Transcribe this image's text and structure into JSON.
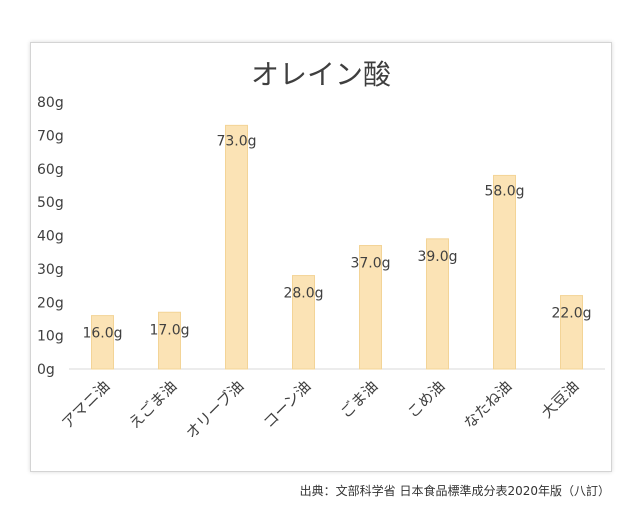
{
  "chart_data": {
    "type": "bar",
    "title": "オレイン酸",
    "categories": [
      "アマニ油",
      "えごま油",
      "オリーブ油",
      "コーン油",
      "ごま油",
      "こめ油",
      "なたね油",
      "大豆油"
    ],
    "values": [
      16.0,
      17.0,
      73.0,
      28.0,
      37.0,
      39.0,
      58.0,
      22.0
    ],
    "data_labels": [
      "16.0g",
      "17.0g",
      "73.0g",
      "28.0g",
      "37.0g",
      "39.0g",
      "58.0g",
      "22.0g"
    ],
    "ylim": [
      0,
      80
    ],
    "yticks": [
      "0g",
      "10g",
      "20g",
      "30g",
      "40g",
      "50g",
      "60g",
      "70g",
      "80g"
    ],
    "grid": false,
    "bar_color": "#fbe3b5",
    "bar_edge_color": "#f3d497"
  },
  "source": "出典：文部科学省 日本食品標準成分表2020年版（八訂）"
}
